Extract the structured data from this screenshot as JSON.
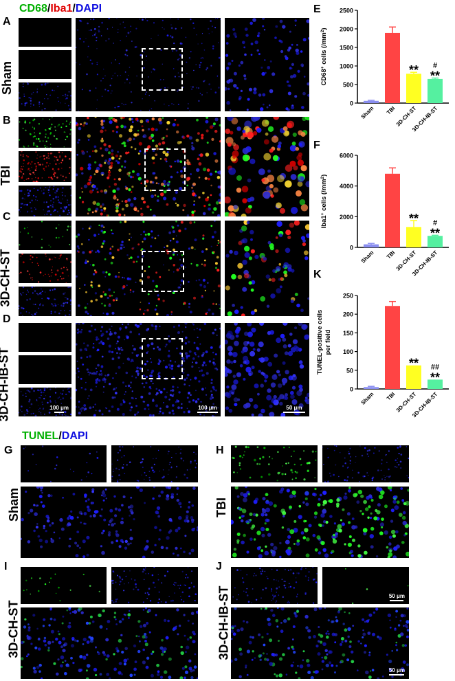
{
  "top_legend": {
    "a": "CD68",
    "b": "/",
    "c": "Iba1",
    "d": "/",
    "e": "DAPI"
  },
  "bottom_legend": {
    "a": "TUNEL",
    "b": "/",
    "c": "DAPI"
  },
  "panel_letters": {
    "A": "A",
    "B": "B",
    "C": "C",
    "D": "D",
    "E": "E",
    "F": "F",
    "G": "G",
    "H": "H",
    "I": "I",
    "J": "J",
    "K": "K"
  },
  "row_labels": {
    "sham": "Sham",
    "tbi": "TBI",
    "ch": "3D-CH-ST",
    "chib": "3D-CH-IB-ST",
    "g": "Sham",
    "h": "TBI",
    "i": "3D-CH-ST",
    "j": "3D-CH-IB-ST"
  },
  "scale_bars": {
    "d_left": "100 μm",
    "d_mid": "100 μm",
    "d_right": "50 μm",
    "j_top": "50 μm",
    "j_bottom": "50 μm"
  },
  "colors": {
    "green": "#00c000",
    "red": "#e00000",
    "blue": "#1a1aff",
    "sham": "#8a8ef0",
    "tbi": "#ff4444",
    "ch": "#ffff22",
    "chib": "#55f0a0"
  },
  "chart_data": [
    {
      "type": "bar",
      "panel": "E",
      "categories": [
        "Sham",
        "TBI",
        "3D-CH-ST",
        "3D-CH-IB-ST"
      ],
      "values": [
        60,
        1890,
        790,
        650
      ],
      "errors": [
        15,
        160,
        40,
        25
      ],
      "ylabel": "CD68",
      "ylabel_sup": "+",
      "ylabel_tail": " cells (/mm",
      "ylabel_sup2": "2",
      "ylabel_end": ")",
      "ylim": [
        0,
        2500
      ],
      "yticks": [
        "0",
        "500",
        "1000",
        "1500",
        "2000",
        "2500"
      ],
      "annotations": [
        {
          "category": "3D-CH-ST",
          "lines": [
            "**"
          ]
        },
        {
          "category": "3D-CH-IB-ST",
          "lines": [
            "#",
            "**"
          ]
        }
      ]
    },
    {
      "type": "bar",
      "panel": "F",
      "categories": [
        "Sham",
        "TBI",
        "3D-CH-ST",
        "3D-CH-IB-ST"
      ],
      "values": [
        200,
        4800,
        1330,
        750
      ],
      "errors": [
        60,
        380,
        420,
        40
      ],
      "ylabel": "Iba1",
      "ylabel_sup": "+",
      "ylabel_tail": " cells (/mm",
      "ylabel_sup2": "2",
      "ylabel_end": ")",
      "ylim": [
        0,
        6000
      ],
      "yticks": [
        "0",
        "2000",
        "4000",
        "6000"
      ],
      "annotations": [
        {
          "category": "3D-CH-ST",
          "lines": [
            "**"
          ]
        },
        {
          "category": "3D-CH-IB-ST",
          "lines": [
            "#",
            "**"
          ]
        }
      ]
    },
    {
      "type": "bar",
      "panel": "K",
      "categories": [
        "Sham",
        "TBI",
        "3D-CH-ST",
        "3D-CH-IB-ST"
      ],
      "values": [
        5,
        222,
        63,
        25
      ],
      "errors": [
        2,
        12,
        0,
        0
      ],
      "ylabel": "TUNEL-positive cells",
      "ylabel2": "per field",
      "ylim": [
        0,
        250
      ],
      "yticks": [
        "0",
        "50",
        "100",
        "150",
        "200",
        "250"
      ],
      "annotations": [
        {
          "category": "3D-CH-ST",
          "lines": [
            "**"
          ]
        },
        {
          "category": "3D-CH-IB-ST",
          "lines": [
            "##",
            "**"
          ]
        }
      ]
    }
  ]
}
